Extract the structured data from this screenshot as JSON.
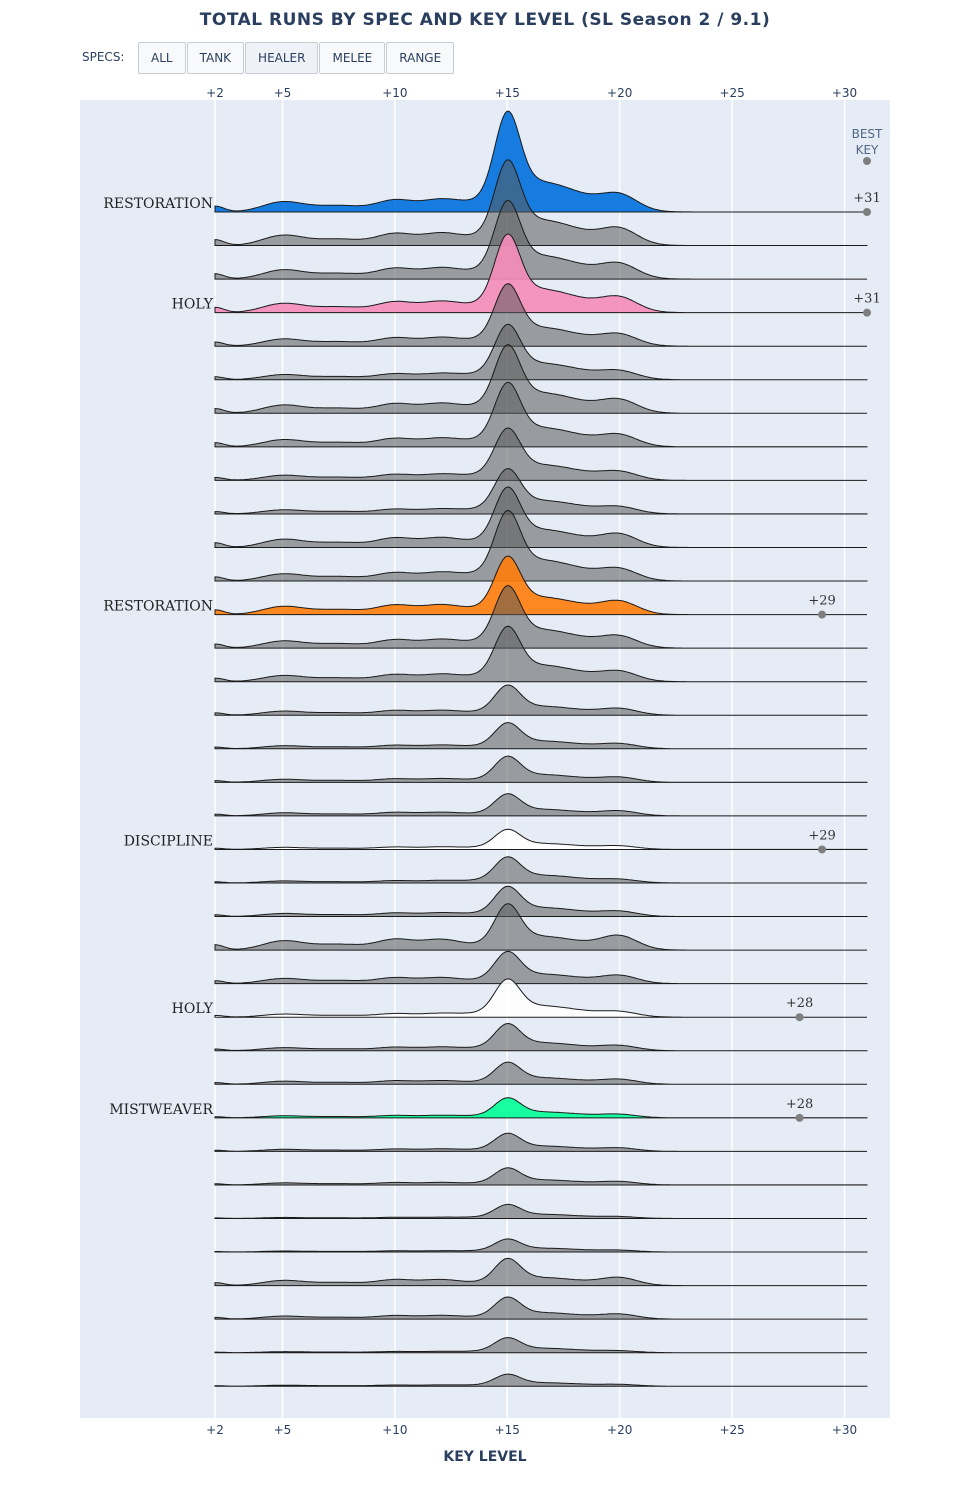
{
  "title": "TOTAL RUNS BY SPEC AND KEY LEVEL (SL Season 2 / 9.1)",
  "filters": {
    "label": "SPECS:",
    "buttons": [
      "ALL",
      "TANK",
      "HEALER",
      "MELEE",
      "RANGE"
    ],
    "active": "HEALER"
  },
  "chart_data": {
    "type": "area",
    "subtype": "ridgeline",
    "xlabel": "KEY LEVEL",
    "x_range": [
      2,
      31
    ],
    "x_ticks": [
      2,
      5,
      10,
      15,
      20,
      25,
      30
    ],
    "x_tick_labels": [
      "+2",
      "+5",
      "+10",
      "+15",
      "+20",
      "+25",
      "+30"
    ],
    "best_key_header": [
      "BEST",
      "KEY"
    ],
    "default_color": "#7f7f7f",
    "grid": true,
    "ridges": [
      {
        "label": "RESTORATION",
        "color": "#0070DE",
        "peak": 1.0,
        "base": 0.1,
        "best": "+31",
        "best_x": 31
      },
      {
        "label": "",
        "color": "",
        "peak": 0.85,
        "base": 0.1,
        "best": "",
        "best_x": null
      },
      {
        "label": "",
        "color": "",
        "peak": 0.78,
        "base": 0.09,
        "best": "",
        "best_x": null
      },
      {
        "label": "HOLY",
        "color": "#F58CBA",
        "peak": 0.78,
        "base": 0.09,
        "best": "+31",
        "best_x": 31
      },
      {
        "label": "",
        "color": "",
        "peak": 0.62,
        "base": 0.07,
        "best": "",
        "best_x": null
      },
      {
        "label": "",
        "color": "",
        "peak": 0.55,
        "base": 0.05,
        "best": "",
        "best_x": null
      },
      {
        "label": "",
        "color": "",
        "peak": 0.68,
        "base": 0.08,
        "best": "",
        "best_x": null
      },
      {
        "label": "",
        "color": "",
        "peak": 0.64,
        "base": 0.07,
        "best": "",
        "best_x": null
      },
      {
        "label": "",
        "color": "",
        "peak": 0.52,
        "base": 0.05,
        "best": "",
        "best_x": null
      },
      {
        "label": "",
        "color": "",
        "peak": 0.45,
        "base": 0.04,
        "best": "",
        "best_x": null
      },
      {
        "label": "",
        "color": "",
        "peak": 0.6,
        "base": 0.08,
        "best": "",
        "best_x": null
      },
      {
        "label": "",
        "color": "",
        "peak": 0.7,
        "base": 0.07,
        "best": "",
        "best_x": null
      },
      {
        "label": "RESTORATION",
        "color": "#FF7D0A",
        "peak": 0.58,
        "base": 0.08,
        "best": "+29",
        "best_x": 29
      },
      {
        "label": "",
        "color": "",
        "peak": 0.62,
        "base": 0.07,
        "best": "",
        "best_x": null
      },
      {
        "label": "",
        "color": "",
        "peak": 0.55,
        "base": 0.06,
        "best": "",
        "best_x": null
      },
      {
        "label": "",
        "color": "",
        "peak": 0.3,
        "base": 0.04,
        "best": "",
        "best_x": null
      },
      {
        "label": "",
        "color": "",
        "peak": 0.26,
        "base": 0.03,
        "best": "",
        "best_x": null
      },
      {
        "label": "",
        "color": "",
        "peak": 0.26,
        "base": 0.03,
        "best": "",
        "best_x": null
      },
      {
        "label": "",
        "color": "",
        "peak": 0.22,
        "base": 0.03,
        "best": "",
        "best_x": null
      },
      {
        "label": "DISCIPLINE",
        "color": "#FFFFFF",
        "peak": 0.2,
        "base": 0.02,
        "best": "+29",
        "best_x": 29
      },
      {
        "label": "",
        "color": "",
        "peak": 0.26,
        "base": 0.02,
        "best": "",
        "best_x": null
      },
      {
        "label": "",
        "color": "",
        "peak": 0.3,
        "base": 0.03,
        "best": "",
        "best_x": null
      },
      {
        "label": "",
        "color": "",
        "peak": 0.46,
        "base": 0.09,
        "best": "",
        "best_x": null
      },
      {
        "label": "",
        "color": "",
        "peak": 0.32,
        "base": 0.05,
        "best": "",
        "best_x": null
      },
      {
        "label": "HOLY",
        "color": "#FFFFFF",
        "peak": 0.38,
        "base": 0.03,
        "best": "+28",
        "best_x": 28
      },
      {
        "label": "",
        "color": "",
        "peak": 0.27,
        "base": 0.03,
        "best": "",
        "best_x": null
      },
      {
        "label": "",
        "color": "",
        "peak": 0.22,
        "base": 0.03,
        "best": "",
        "best_x": null
      },
      {
        "label": "MISTWEAVER",
        "color": "#00FF96",
        "peak": 0.2,
        "base": 0.02,
        "best": "+28",
        "best_x": 28
      },
      {
        "label": "",
        "color": "",
        "peak": 0.18,
        "base": 0.02,
        "best": "",
        "best_x": null
      },
      {
        "label": "",
        "color": "",
        "peak": 0.17,
        "base": 0.02,
        "best": "",
        "best_x": null
      },
      {
        "label": "",
        "color": "",
        "peak": 0.14,
        "base": 0.01,
        "best": "",
        "best_x": null
      },
      {
        "label": "",
        "color": "",
        "peak": 0.13,
        "base": 0.01,
        "best": "",
        "best_x": null
      },
      {
        "label": "",
        "color": "",
        "peak": 0.27,
        "base": 0.05,
        "best": "",
        "best_x": null
      },
      {
        "label": "",
        "color": "",
        "peak": 0.22,
        "base": 0.03,
        "best": "",
        "best_x": null
      },
      {
        "label": "",
        "color": "",
        "peak": 0.15,
        "base": 0.01,
        "best": "",
        "best_x": null
      },
      {
        "label": "",
        "color": "",
        "peak": 0.12,
        "base": 0.01,
        "best": "",
        "best_x": null
      }
    ]
  }
}
